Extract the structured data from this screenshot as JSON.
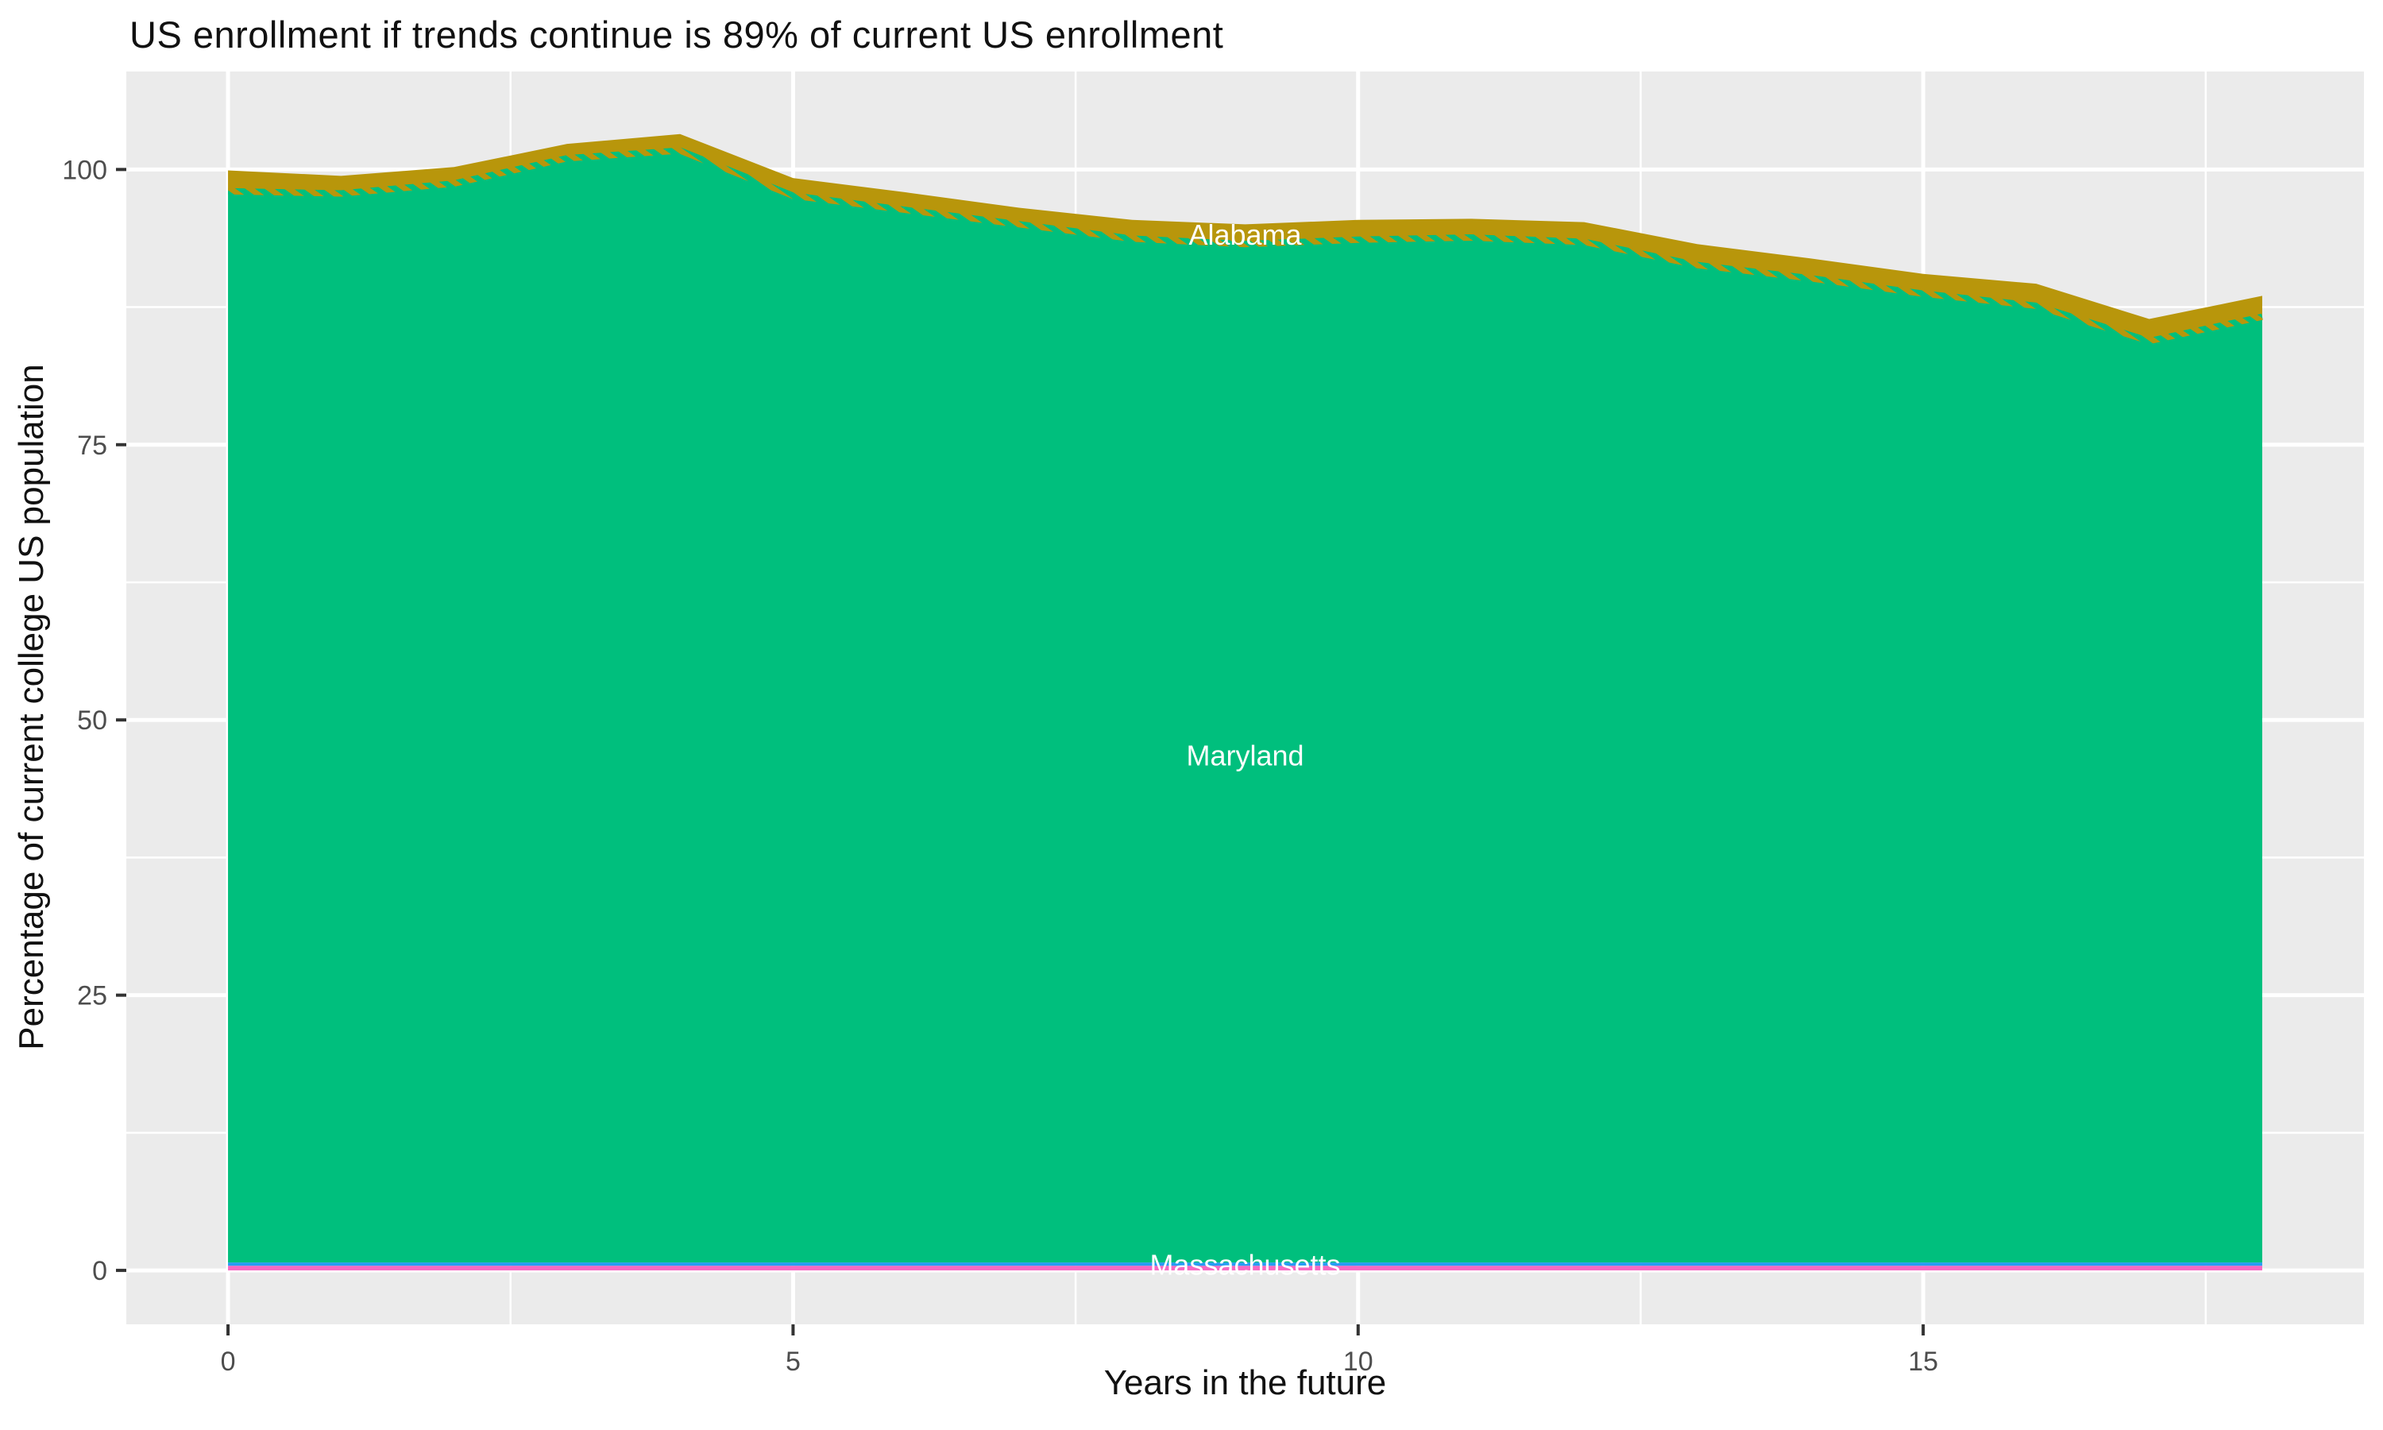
{
  "chart_data": {
    "type": "area",
    "stacked": true,
    "title": "US enrollment if trends continue is 89% of current US enrollment",
    "xlabel": "Years in the future",
    "ylabel": "Percentage of current college US population",
    "x": [
      0,
      1,
      2,
      3,
      4,
      5,
      6,
      7,
      8,
      9,
      10,
      11,
      12,
      13,
      14,
      15,
      16,
      17,
      18
    ],
    "series": [
      {
        "name": "",
        "color": "#F668C3",
        "label_visible": false,
        "values": [
          0.42,
          0.42,
          0.42,
          0.42,
          0.42,
          0.42,
          0.42,
          0.42,
          0.42,
          0.42,
          0.42,
          0.42,
          0.42,
          0.42,
          0.42,
          0.42,
          0.42,
          0.42,
          0.42
        ]
      },
      {
        "name": "Massachusetts",
        "color": "#259CF4",
        "label_visible": true,
        "values": [
          0.3,
          0.3,
          0.3,
          0.3,
          0.3,
          0.3,
          0.3,
          0.3,
          0.3,
          0.3,
          0.3,
          0.3,
          0.3,
          0.3,
          0.3,
          0.3,
          0.3,
          0.3,
          0.3
        ]
      },
      {
        "name": "Maryland",
        "color": "#00BF7D",
        "label_visible": true,
        "values": [
          97.3,
          97.1,
          98.0,
          100.3,
          101.0,
          96.9,
          95.6,
          94.3,
          93.0,
          92.5,
          92.9,
          93.1,
          92.7,
          90.6,
          89.4,
          88.0,
          86.9,
          83.7,
          85.9
        ]
      },
      {
        "name": "Alabama",
        "color": "#B8960B",
        "label_visible": true,
        "values": [
          1.9,
          1.6,
          1.5,
          1.3,
          1.5,
          1.6,
          1.6,
          1.5,
          1.7,
          1.8,
          1.8,
          1.7,
          1.8,
          1.9,
          1.8,
          1.8,
          2.0,
          2.0,
          1.9
        ]
      }
    ],
    "annotations": [
      {
        "text": "Alabama",
        "x": 9,
        "y": 94.1,
        "color": "#ffffff"
      },
      {
        "text": "Maryland",
        "x": 9,
        "y": 46.8,
        "color": "#ffffff"
      },
      {
        "text": "Massachusetts",
        "x": 9,
        "y": 0.55,
        "color": "#ffffff"
      }
    ],
    "x_ticks": [
      0,
      5,
      10,
      15
    ],
    "y_ticks": [
      0,
      25,
      50,
      75,
      100
    ],
    "x_minor_ticks": [
      2.5,
      7.5,
      12.5,
      17.5
    ],
    "y_minor_ticks": [
      12.5,
      37.5,
      62.5,
      87.5
    ],
    "xlim": [
      -0.9,
      18.9
    ],
    "ylim": [
      -4.9,
      108.9
    ],
    "grid": true,
    "legend_position": "none",
    "panel_bg": "#EBEBEB",
    "gridline_color": "#FFFFFF",
    "tick_mark_color": "#333333",
    "tick_label_color": "#4D4D4D",
    "title_color": "#111111"
  }
}
